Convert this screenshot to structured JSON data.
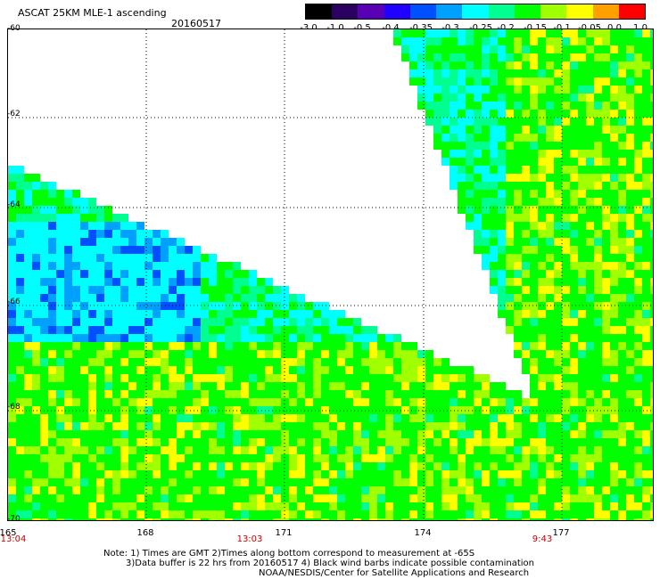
{
  "title": "ASCAT 25KM MLE-1 ascending",
  "date": "20160517",
  "colorbar": {
    "labels": [
      "-3.0",
      "-1.0",
      "-0.5",
      "-0.4",
      "-0.35",
      "-0.3",
      "-0.25",
      "-0.2",
      "-0.15",
      "-0.1",
      "-0.05",
      "0.0",
      "1.0"
    ],
    "colors": [
      "#000000",
      "#2a0060",
      "#5a00b4",
      "#2000ff",
      "#0050ff",
      "#00a0ff",
      "#00ffff",
      "#00ff90",
      "#00ff00",
      "#a0ff00",
      "#ffff00",
      "#ffa000",
      "#ff0000"
    ]
  },
  "lat_labels": [
    "-60",
    "-62",
    "-64",
    "-66",
    "-68",
    "-70"
  ],
  "lon_labels": [
    "165",
    "168",
    "171",
    "174",
    "177"
  ],
  "times": [
    "13:04",
    "13:03",
    "9:43"
  ],
  "notes": [
    "Note: 1) Times are GMT 2)Times along bottom correspond to measurement at -65S",
    "3)Data buffer is 22 hrs from 20160517 4) Black wind barbs indicate possible contamination",
    "NOAA/NESDIS/Center for Satellite Applications and Research"
  ]
}
